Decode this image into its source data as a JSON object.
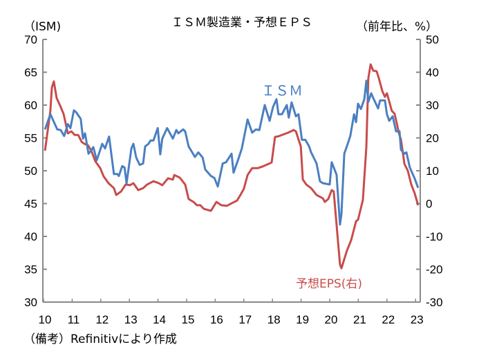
{
  "chart_data": {
    "type": "line",
    "title": "ＩＳＭ製造業・予想ＥＰＳ",
    "ylabel_left": "（ISM)",
    "ylabel_right": "（前年比、%）",
    "source": "（備考）Refinitivにより作成",
    "xlim": [
      10,
      23.2
    ],
    "ylim_left": [
      30,
      70
    ],
    "ylim_right": [
      -30,
      50
    ],
    "x_ticks": [
      "10",
      "11",
      "12",
      "13",
      "14",
      "15",
      "16",
      "17",
      "18",
      "19",
      "20",
      "21",
      "22",
      "23"
    ],
    "y_ticks_left": [
      "70",
      "65",
      "60",
      "55",
      "50",
      "45",
      "40",
      "35",
      "30"
    ],
    "y_ticks_right": [
      "50",
      "40",
      "30",
      "20",
      "10",
      "0",
      "-10",
      "-20",
      "-30"
    ],
    "series": [
      {
        "name": "ＩＳＭ",
        "axis": "left",
        "color": "#4a7fc1",
        "label": "ＩＳＭ",
        "x": [
          10.05,
          10.24,
          10.48,
          10.6,
          10.72,
          10.85,
          10.94,
          11.06,
          11.14,
          11.3,
          11.38,
          11.45,
          11.57,
          11.67,
          11.74,
          11.86,
          12.05,
          12.15,
          12.29,
          12.46,
          12.58,
          12.63,
          12.75,
          12.83,
          12.9,
          13.07,
          13.14,
          13.24,
          13.36,
          13.48,
          13.55,
          13.67,
          13.74,
          13.84,
          13.99,
          14.08,
          14.15,
          14.32,
          14.52,
          14.64,
          14.71,
          14.88,
          14.95,
          15.07,
          15.29,
          15.41,
          15.56,
          15.65,
          15.85,
          15.97,
          16.09,
          16.26,
          16.38,
          16.57,
          16.64,
          16.81,
          16.93,
          17.13,
          17.29,
          17.42,
          17.54,
          17.73,
          17.9,
          18.02,
          18.14,
          18.21,
          18.33,
          18.5,
          18.57,
          18.67,
          18.82,
          18.91,
          19.03,
          19.15,
          19.28,
          19.35,
          19.54,
          19.66,
          19.76,
          20.0,
          20.07,
          20.24,
          20.36,
          20.41,
          20.51,
          20.63,
          20.72,
          20.85,
          20.92,
          20.99,
          21.09,
          21.21,
          21.28,
          21.35,
          21.45,
          21.52,
          21.69,
          21.76,
          21.93,
          22.0,
          22.08,
          22.2,
          22.32,
          22.44,
          22.49,
          22.61,
          22.68,
          22.8,
          22.97,
          23.09
        ],
        "y": [
          56.3,
          58.6,
          56.3,
          56.2,
          55.3,
          57.1,
          56.5,
          59.2,
          58.9,
          57.9,
          54.9,
          55.7,
          52.6,
          53.1,
          53.6,
          51.6,
          54.1,
          53.4,
          55.2,
          49.5,
          49.5,
          49.2,
          50.7,
          50.5,
          48.1,
          53.4,
          54.1,
          52.0,
          50.9,
          51.1,
          53.7,
          54.1,
          54.6,
          54.6,
          56.5,
          52.5,
          54.9,
          56.5,
          54.9,
          56.2,
          55.7,
          56.3,
          56.0,
          53.7,
          52.1,
          52.8,
          52.0,
          50.2,
          49.2,
          48.9,
          47.6,
          51.1,
          51.3,
          52.6,
          49.7,
          51.8,
          53.4,
          57.8,
          55.8,
          56.3,
          56.2,
          60.0,
          57.6,
          59.7,
          60.9,
          58.6,
          58.6,
          60.0,
          58.1,
          60.4,
          58.3,
          58.6,
          54.7,
          54.7,
          53.7,
          52.8,
          51.1,
          48.4,
          48.1,
          47.9,
          51.3,
          49.4,
          41.8,
          43.4,
          52.6,
          54.1,
          55.3,
          58.6,
          57.4,
          60.2,
          59.4,
          60.9,
          63.7,
          60.5,
          61.8,
          61.1,
          59.5,
          60.7,
          60.7,
          58.6,
          57.6,
          58.3,
          56.0,
          56.0,
          53.2,
          52.6,
          52.8,
          50.5,
          48.8,
          47.4
        ]
      },
      {
        "name": "予想EPS(右)",
        "axis": "right",
        "color": "#c84b4b",
        "label": "予想EPS(右)",
        "x": [
          10.05,
          10.24,
          10.29,
          10.36,
          10.46,
          10.58,
          10.7,
          10.77,
          10.85,
          10.97,
          11.09,
          11.21,
          11.33,
          11.43,
          11.55,
          11.67,
          11.81,
          11.98,
          12.1,
          12.27,
          12.46,
          12.54,
          12.71,
          12.87,
          13.02,
          13.14,
          13.31,
          13.48,
          13.62,
          13.84,
          14.03,
          14.15,
          14.35,
          14.52,
          14.57,
          14.76,
          14.95,
          15.07,
          15.24,
          15.36,
          15.48,
          15.6,
          15.85,
          16.04,
          16.21,
          16.4,
          16.62,
          16.76,
          16.88,
          17.0,
          17.13,
          17.29,
          17.49,
          17.66,
          17.97,
          18.09,
          18.21,
          18.55,
          18.74,
          18.82,
          18.99,
          19.06,
          19.18,
          19.35,
          19.54,
          19.76,
          19.83,
          19.95,
          20.07,
          20.14,
          20.36,
          20.41,
          20.6,
          20.75,
          20.92,
          20.99,
          21.16,
          21.28,
          21.35,
          21.43,
          21.52,
          21.64,
          21.71,
          21.84,
          21.93,
          22.0,
          22.17,
          22.27,
          22.42,
          22.49,
          22.61,
          22.73,
          22.85,
          22.97,
          23.09
        ],
        "y": [
          16.1,
          28.3,
          35.3,
          37.2,
          32.1,
          29.8,
          27.3,
          24.5,
          21.4,
          22.0,
          20.9,
          20.9,
          18.8,
          18.2,
          17.8,
          16.1,
          12.9,
          10.8,
          8.3,
          6.2,
          4.7,
          2.6,
          3.7,
          5.8,
          5.6,
          6.2,
          4.1,
          4.7,
          5.8,
          6.8,
          6.2,
          5.6,
          7.7,
          7.3,
          8.7,
          7.9,
          5.8,
          1.4,
          0.5,
          -0.5,
          -0.5,
          -1.6,
          -2.2,
          0.5,
          -0.5,
          -0.7,
          0.3,
          0.9,
          2.6,
          4.5,
          8.7,
          10.8,
          10.8,
          11.3,
          12.5,
          20.3,
          20.5,
          21.6,
          22.4,
          22.0,
          17.4,
          7.3,
          5.8,
          4.7,
          2.6,
          1.6,
          0.5,
          1.4,
          4.1,
          3.7,
          -18.6,
          -19.7,
          -14.4,
          -11.1,
          -5.4,
          -4.9,
          1.1,
          17.2,
          38.2,
          42.4,
          40.5,
          40.3,
          38.4,
          34.2,
          32.5,
          33.6,
          28.3,
          27.3,
          21.4,
          19.5,
          12.1,
          10.0,
          5.8,
          3.1,
          -0.5
        ]
      }
    ]
  }
}
